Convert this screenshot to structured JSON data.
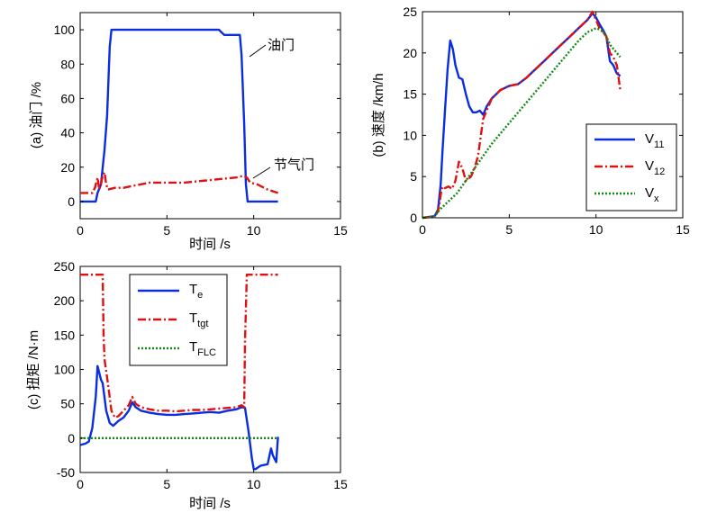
{
  "chart_data": [
    {
      "id": "a",
      "type": "line",
      "title": "",
      "xlabel": "时间 /s",
      "ylabel": "(a) 油门 /%",
      "xlim": [
        0,
        15
      ],
      "ylim": [
        -10,
        110
      ],
      "xticks": [
        0,
        5,
        10,
        15
      ],
      "yticks": [
        0,
        20,
        40,
        60,
        80,
        100
      ],
      "grid": false,
      "annotations": [
        {
          "text": "油门",
          "x": 11.3,
          "y": 80
        },
        {
          "text": "节气门",
          "x": 11.3,
          "y": 20
        }
      ],
      "series": [
        {
          "name": "油门",
          "color": "#0a2de0",
          "dash": "solid",
          "x": [
            0,
            0.9,
            1.0,
            1.2,
            1.4,
            1.55,
            1.7,
            1.8,
            2.0,
            8.0,
            8.3,
            9.2,
            9.3,
            9.45,
            9.55,
            9.65,
            9.8,
            11.4
          ],
          "y": [
            0,
            0,
            5,
            10,
            30,
            50,
            90,
            100,
            100,
            100,
            97,
            97,
            85,
            45,
            10,
            0,
            0,
            0
          ]
        },
        {
          "name": "节气门",
          "color": "#e01010",
          "dash": "dashdot",
          "x": [
            0,
            0.7,
            0.85,
            1.0,
            1.1,
            1.2,
            1.3,
            1.4,
            1.5,
            1.6,
            2.0,
            2.5,
            3.0,
            4.0,
            5.0,
            6.0,
            7.0,
            8.0,
            9.0,
            9.4,
            9.6,
            9.8,
            10.2,
            10.8,
            11.4
          ],
          "y": [
            5,
            5,
            8,
            14,
            7,
            10,
            15,
            17,
            10,
            7,
            8,
            8,
            9,
            11,
            11,
            11,
            12,
            13,
            14,
            15,
            14,
            11,
            10,
            7,
            5
          ]
        }
      ]
    },
    {
      "id": "b",
      "type": "line",
      "title": "",
      "xlabel": "",
      "ylabel": "(b) 速度 /km/h",
      "xlim": [
        0,
        15
      ],
      "ylim": [
        0,
        25
      ],
      "xticks": [
        0,
        5,
        10,
        15
      ],
      "yticks": [
        0,
        5,
        10,
        15,
        20,
        25
      ],
      "grid": false,
      "legend": {
        "position": "bottom-right",
        "entries": [
          {
            "base": "V",
            "sub": "11"
          },
          {
            "base": "V",
            "sub": "12"
          },
          {
            "base": "V",
            "sub": "x"
          }
        ]
      },
      "series": [
        {
          "name": "V11",
          "color": "#0a2de0",
          "dash": "solid",
          "x": [
            0,
            0.7,
            0.9,
            1.05,
            1.15,
            1.3,
            1.45,
            1.6,
            1.75,
            1.9,
            2.1,
            2.3,
            2.5,
            2.7,
            2.9,
            3.1,
            3.3,
            3.5,
            3.7,
            4.0,
            4.5,
            5.0,
            5.5,
            6.0,
            6.5,
            7.0,
            7.5,
            8.0,
            8.5,
            9.0,
            9.5,
            9.8,
            10.0,
            10.2,
            10.4,
            10.6,
            10.8,
            11.0,
            11.2,
            11.4
          ],
          "y": [
            0,
            0.2,
            1.0,
            4.0,
            8.0,
            13.0,
            18.0,
            21.5,
            20.5,
            18.5,
            17.0,
            16.8,
            15.0,
            13.5,
            12.8,
            12.8,
            13.0,
            12.5,
            13.5,
            14.5,
            15.5,
            16.0,
            16.2,
            17.0,
            18.0,
            19.0,
            20.0,
            21.0,
            22.0,
            23.0,
            24.0,
            24.8,
            24.3,
            23.5,
            22.8,
            22.0,
            19.0,
            18.5,
            17.5,
            17.2
          ]
        },
        {
          "name": "V12",
          "color": "#e01010",
          "dash": "dashdot",
          "x": [
            0,
            0.7,
            0.9,
            1.0,
            1.1,
            1.2,
            1.3,
            1.5,
            1.7,
            1.9,
            2.1,
            2.3,
            2.5,
            2.8,
            3.0,
            3.2,
            3.5,
            3.8,
            4.0,
            4.5,
            5.0,
            5.5,
            6.0,
            6.5,
            7.0,
            7.5,
            8.0,
            8.5,
            9.0,
            9.5,
            9.8,
            10.0,
            10.2,
            10.4,
            10.6,
            10.8,
            11.0,
            11.2,
            11.4
          ],
          "y": [
            0,
            0.1,
            0.8,
            2.0,
            3.5,
            3.8,
            3.6,
            3.8,
            3.5,
            4.5,
            6.8,
            6.0,
            4.5,
            5.0,
            6.0,
            7.5,
            12.0,
            13.5,
            14.5,
            15.5,
            16.0,
            16.2,
            17.0,
            18.0,
            19.0,
            20.0,
            21.0,
            22.0,
            23.0,
            24.0,
            25.0,
            24.0,
            23.0,
            22.5,
            22.0,
            20.0,
            19.5,
            18.5,
            15.5
          ]
        },
        {
          "name": "Vx",
          "color": "#118a11",
          "dash": "dotted",
          "x": [
            0,
            0.7,
            1.0,
            1.5,
            2.0,
            2.5,
            3.0,
            3.5,
            4.0,
            5.0,
            6.0,
            7.0,
            8.0,
            9.0,
            9.5,
            10.0,
            10.3,
            10.6,
            10.8,
            11.0,
            11.2,
            11.4
          ],
          "y": [
            0,
            0.2,
            1.0,
            2.0,
            3.0,
            4.5,
            6.0,
            7.5,
            9.0,
            11.5,
            14.0,
            16.5,
            19.0,
            21.5,
            22.5,
            23.0,
            22.8,
            22.0,
            21.0,
            20.5,
            20.0,
            19.5
          ]
        }
      ]
    },
    {
      "id": "c",
      "type": "line",
      "title": "",
      "xlabel": "时间 /s",
      "ylabel": "(c) 扭矩 /N·m",
      "xlim": [
        0,
        15
      ],
      "ylim": [
        -50,
        250
      ],
      "xticks": [
        0,
        5,
        10,
        15
      ],
      "yticks": [
        -50,
        0,
        50,
        100,
        150,
        200,
        250
      ],
      "grid": false,
      "legend": {
        "position": "top-left",
        "entries": [
          {
            "base": "T",
            "sub": "e"
          },
          {
            "base": "T",
            "sub": "tgt"
          },
          {
            "base": "T",
            "sub": "FLC"
          }
        ]
      },
      "series": [
        {
          "name": "Te",
          "color": "#0a2de0",
          "dash": "solid",
          "x": [
            0,
            0.3,
            0.5,
            0.7,
            0.9,
            1.0,
            1.1,
            1.2,
            1.3,
            1.5,
            1.7,
            1.9,
            2.2,
            2.5,
            2.8,
            3.0,
            3.2,
            3.5,
            4.0,
            4.5,
            5.0,
            5.5,
            6.0,
            6.5,
            7.0,
            7.5,
            8.0,
            8.5,
            9.0,
            9.3,
            9.5,
            9.7,
            9.9,
            10.0,
            10.1,
            10.4,
            10.8,
            11.0,
            11.1,
            11.2,
            11.3,
            11.4
          ],
          "y": [
            -10,
            -8,
            -5,
            15,
            60,
            105,
            95,
            85,
            80,
            40,
            22,
            18,
            25,
            30,
            40,
            52,
            45,
            40,
            37,
            35,
            34,
            34,
            35,
            36,
            37,
            38,
            37,
            40,
            42,
            45,
            44,
            10,
            -30,
            -45,
            -45,
            -40,
            -38,
            -15,
            -25,
            -30,
            -35,
            2
          ]
        },
        {
          "name": "Ttgt",
          "color": "#e01010",
          "dash": "dashdot",
          "x": [
            0,
            1.3,
            1.35,
            1.4,
            1.6,
            1.8,
            2.0,
            2.2,
            2.5,
            2.8,
            3.0,
            3.2,
            3.5,
            4.0,
            4.5,
            5.0,
            5.5,
            6.0,
            6.5,
            7.0,
            7.5,
            8.0,
            8.5,
            9.0,
            9.3,
            9.45,
            9.5,
            9.6,
            11.4
          ],
          "y": [
            238,
            238,
            150,
            115,
            80,
            40,
            30,
            32,
            40,
            48,
            60,
            50,
            45,
            42,
            40,
            40,
            39,
            40,
            41,
            41,
            42,
            43,
            44,
            45,
            48,
            45,
            140,
            238,
            238
          ]
        },
        {
          "name": "TFLC",
          "color": "#118a11",
          "dash": "dotted",
          "x": [
            0,
            11.4
          ],
          "y": [
            0,
            0
          ]
        }
      ]
    }
  ]
}
